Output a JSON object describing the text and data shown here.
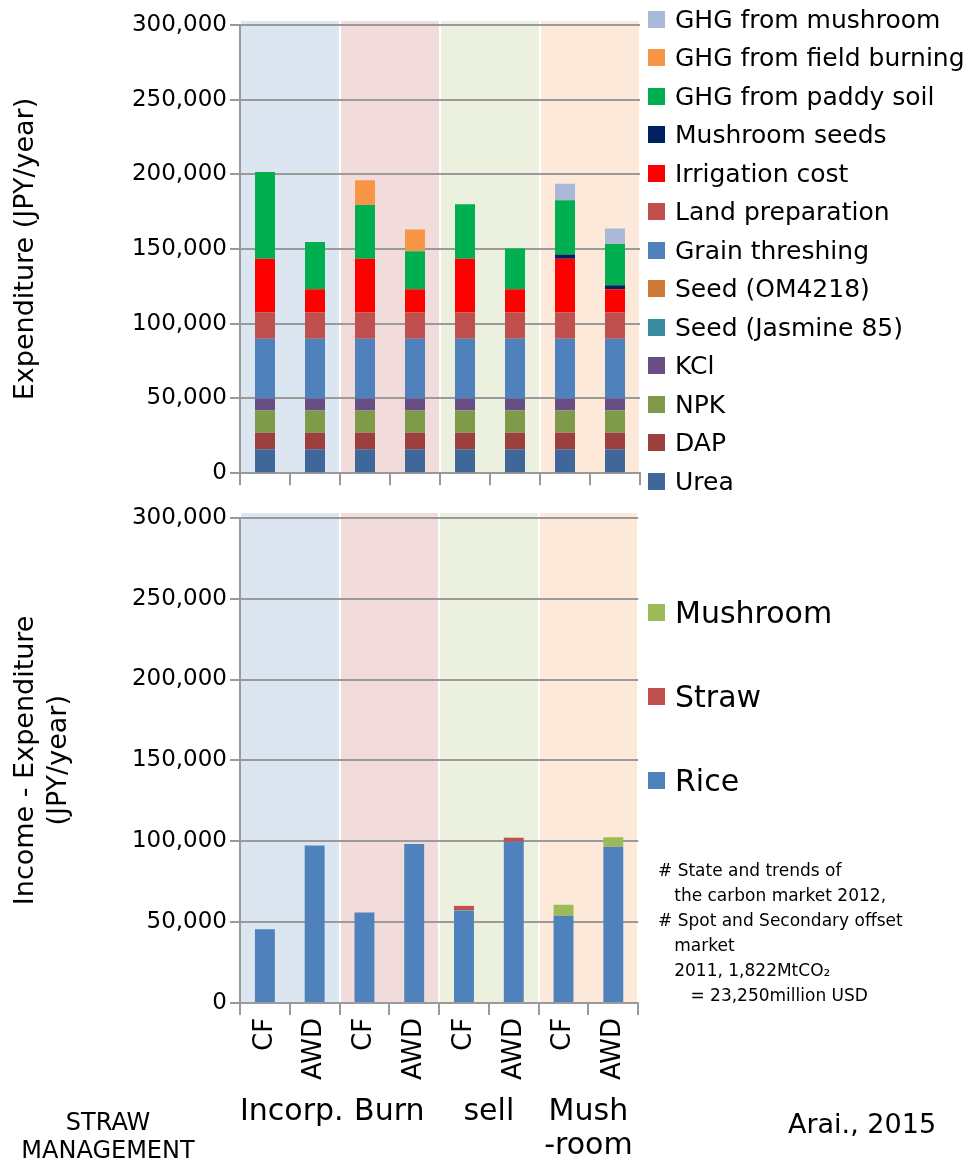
{
  "chart_data": [
    {
      "type": "bar",
      "ylabel": "Expenditure (JPY/year)",
      "stacked": true,
      "grid": "y",
      "legend": "right",
      "tick_labels": "y",
      "categories": [
        null,
        null,
        null,
        null,
        null,
        null,
        null,
        null
      ],
      "ylim": [
        0,
        300000
      ],
      "yticks": [
        0,
        {
          "value": 50000,
          "label": "50,000"
        },
        {
          "value": 100000,
          "label": "100,000"
        },
        {
          "value": 150000,
          "label": "150,000"
        },
        {
          "value": 200000,
          "label": "200,000"
        },
        {
          "value": 250000,
          "label": "250,000"
        },
        {
          "value": 300000,
          "label": "300,000"
        }
      ],
      "series": [
        {
          "name": "Urea",
          "color": "#3f679a",
          "values": [
            16000,
            16000,
            16000,
            16000,
            16000,
            16000,
            16000,
            16000
          ]
        },
        {
          "name": "DAP",
          "color": "#9c3f3e",
          "values": [
            11000,
            11000,
            11000,
            11000,
            11000,
            11000,
            11000,
            11000
          ]
        },
        {
          "name": "NPK",
          "color": "#7f9a48",
          "values": [
            15000,
            15000,
            15000,
            15000,
            15000,
            15000,
            15000,
            15000
          ]
        },
        {
          "name": "KCl",
          "color": "#674f86",
          "values": [
            8000,
            8000,
            8000,
            8000,
            8000,
            8000,
            8000,
            8000
          ]
        },
        {
          "name": "Seed (Jasmine 85)",
          "color": "#378c9f",
          "values": [
            0,
            0,
            0,
            0,
            0,
            0,
            0,
            0
          ]
        },
        {
          "name": "Seed (OM4218)",
          "color": "#cd7a38",
          "values": [
            0,
            0,
            0,
            0,
            0,
            0,
            0,
            0
          ]
        },
        {
          "name": "Grain threshing",
          "color": "#4f81bd",
          "values": [
            40000,
            40000,
            40000,
            40000,
            40000,
            40000,
            40000,
            40000
          ]
        },
        {
          "name": "Land preparation",
          "color": "#c0504d",
          "values": [
            17500,
            17500,
            17500,
            17500,
            17500,
            17500,
            17500,
            17500
          ]
        },
        {
          "name": "Irrigation cost",
          "color": "#ff0000",
          "values": [
            36000,
            15500,
            36000,
            15500,
            36000,
            15500,
            36000,
            15500
          ]
        },
        {
          "name": "Mushroom seeds",
          "color": "#002060",
          "values": [
            0,
            0,
            0,
            0,
            0,
            0,
            2800,
            2700
          ]
        },
        {
          "name": "GHG from paddy soil",
          "color": "#00b050",
          "values": [
            58000,
            31700,
            36000,
            25500,
            36500,
            27300,
            36300,
            27600
          ]
        },
        {
          "name": "GHG from field burning",
          "color": "#f79646",
          "values": [
            0,
            0,
            16500,
            14500,
            0,
            0,
            0,
            0
          ]
        },
        {
          "name": "GHG from mushroom",
          "color": "#a9b9d7",
          "values": [
            0,
            0,
            0,
            0,
            0,
            0,
            11000,
            10400
          ]
        }
      ]
    },
    {
      "type": "bar",
      "ylabel": "Income - Expenditure\n(JPY/year)",
      "stacked": true,
      "grid": "y",
      "legend": "right",
      "categories": [
        "CF",
        "AWD",
        "CF",
        "AWD",
        "CF",
        "AWD",
        "CF",
        "AWD"
      ],
      "ylim": [
        0,
        300000
      ],
      "yticks": [
        0,
        {
          "value": 50000,
          "label": "50,000"
        },
        {
          "value": 100000,
          "label": "100,000"
        },
        {
          "value": 150000,
          "label": "150,000"
        },
        {
          "value": 200000,
          "label": "200,000"
        },
        {
          "value": 250000,
          "label": "250,000"
        },
        {
          "value": 300000,
          "label": "300,000"
        }
      ],
      "series": [
        {
          "name": "Rice",
          "color": "#4f81bd",
          "values": [
            45600,
            97400,
            55900,
            98300,
            57200,
            99600,
            53900,
            96500
          ]
        },
        {
          "name": "Straw",
          "color": "#c0504d",
          "values": [
            0,
            0,
            0,
            0,
            2800,
            2600,
            0,
            0
          ]
        },
        {
          "name": "Mushroom",
          "color": "#9bbb59",
          "values": [
            0,
            0,
            0,
            0,
            0,
            0,
            6800,
            5900
          ]
        }
      ],
      "annotations": [
        "Incorp.",
        "Burn",
        "sell",
        "Mush\n-room",
        "STRAW\nMANAGEMENT",
        "# State and trends of\n   the carbon market 2012,\n# Spot and Secondary offset\n   market\n   2011, 1,822MtCO₂\n      = 23,250million USD",
        "Arai., 2015"
      ]
    }
  ]
}
